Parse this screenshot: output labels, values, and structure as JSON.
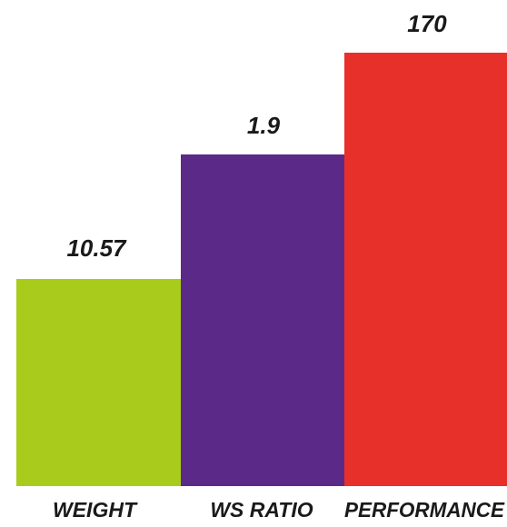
{
  "bars": [
    {
      "label": "WEIGHT",
      "value": 10.57
    },
    {
      "label": "WS RATIO",
      "value": 1.9
    },
    {
      "label": "PERFORMANCE",
      "value": 170
    }
  ]
}
